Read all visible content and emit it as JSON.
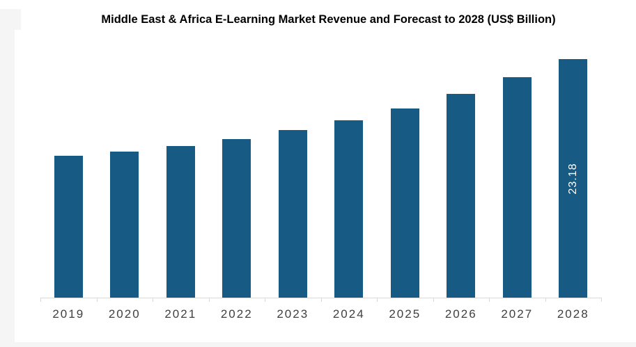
{
  "title": {
    "text": "Middle East & Africa E-Learning Market Revenue and Forecast to 2028 (US$ Billion)"
  },
  "colors": {
    "page_background": "#f5f5f5",
    "panel_background": "#ffffff",
    "bar": "#175B84",
    "axis_line": "#d9d9d9",
    "axis_label_text": "#3f3f3f",
    "data_label_text": "#ffffff",
    "title_text": "#000000"
  },
  "chart_data": {
    "type": "bar",
    "title": "Middle East & Africa E-Learning Market Revenue and Forecast to 2028 (US$ Billion)",
    "categories": [
      "2019",
      "2020",
      "2021",
      "2022",
      "2023",
      "2024",
      "2025",
      "2026",
      "2027",
      "2028"
    ],
    "values": [
      13.79,
      14.19,
      14.73,
      15.41,
      16.29,
      17.23,
      18.38,
      19.8,
      21.42,
      23.18
    ],
    "bar_label": {
      "category": "2028",
      "text": "23.18"
    },
    "xlabel": "",
    "ylabel": "",
    "ylim": [
      0,
      26
    ],
    "grid": false,
    "legend": "none",
    "y_axis_labels_visible": false
  }
}
